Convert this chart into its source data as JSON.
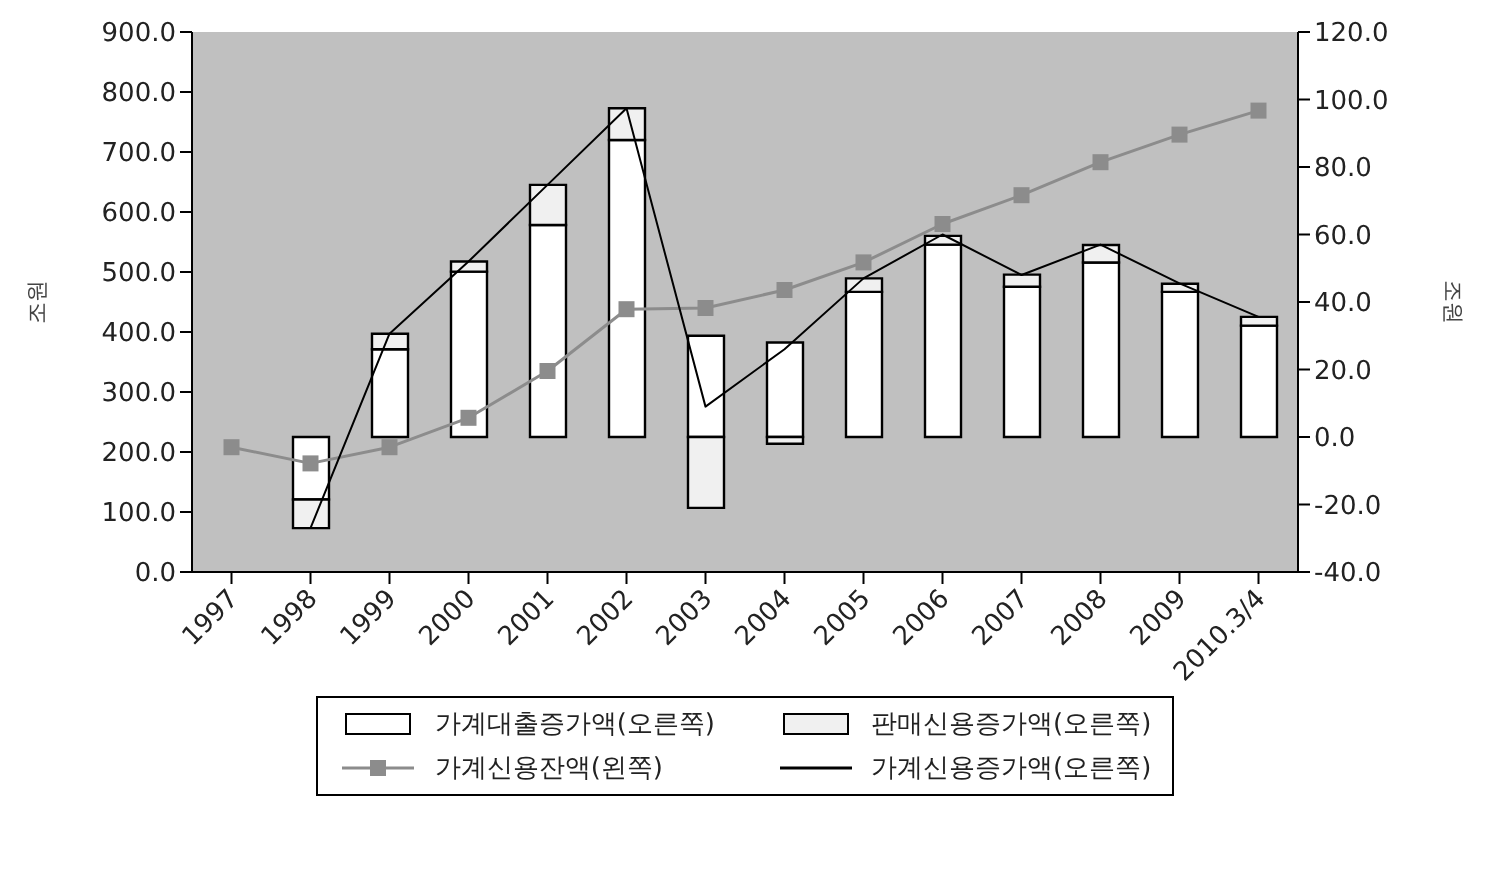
{
  "chart_data": {
    "type": "bar",
    "stacked": true,
    "ylabel": "조원",
    "y2label": "조원",
    "categories": [
      "1997",
      "1998",
      "1999",
      "2000",
      "2001",
      "2002",
      "2003",
      "2004",
      "2005",
      "2006",
      "2007",
      "2008",
      "2009",
      "2010.3/4"
    ],
    "series": [
      {
        "name": "가계대출증가액(오른쪽)",
        "axis": "y2",
        "color": "#ffffff",
        "values": [
          null,
          -18.5,
          26,
          49,
          62.8,
          88,
          30,
          28,
          43,
          57,
          44.5,
          51.7,
          43,
          33
        ]
      },
      {
        "name": "판매신용증가액(오른쪽)",
        "axis": "y2",
        "color": "#f0f0f0",
        "values": [
          null,
          -8.5,
          4.6,
          3,
          11.9,
          9.4,
          -21,
          -2,
          4,
          2.6,
          3.6,
          5.2,
          2.4,
          2.6
        ]
      },
      {
        "name": "가계신용잔액(왼쪽)",
        "type": "line",
        "axis": "y",
        "color": "#8c8c8c",
        "marker": "square",
        "values": [
          208,
          181,
          208,
          257,
          335,
          438,
          440,
          470,
          516,
          580,
          628,
          683,
          729,
          769
        ]
      },
      {
        "name": "가계신용증가액(오른쪽)",
        "type": "line",
        "axis": "y2",
        "color": "#000000",
        "marker": "none",
        "values": [
          null,
          -27,
          30.6,
          52,
          74.7,
          97.4,
          9,
          26,
          47,
          60,
          48,
          57,
          45.5,
          35.6
        ]
      }
    ],
    "ylim": [
      0,
      900
    ],
    "yticks": [
      {
        "value": 0,
        "label": "0.0"
      },
      {
        "value": 100,
        "label": "100.0"
      },
      {
        "value": 200,
        "label": "200.0"
      },
      {
        "value": 300,
        "label": "300.0"
      },
      {
        "value": 400,
        "label": "400.0"
      },
      {
        "value": 500,
        "label": "500.0"
      },
      {
        "value": 600,
        "label": "600.0"
      },
      {
        "value": 700,
        "label": "700.0"
      },
      {
        "value": 800,
        "label": "800.0"
      },
      {
        "value": 900,
        "label": "900.0"
      }
    ],
    "y2lim": [
      -40,
      120
    ],
    "y2ticks": [
      {
        "value": -40,
        "label": "-40.0"
      },
      {
        "value": -20,
        "label": "-20.0"
      },
      {
        "value": 0,
        "label": "0.0"
      },
      {
        "value": 20,
        "label": "20.0"
      },
      {
        "value": 40,
        "label": "40.0"
      },
      {
        "value": 60,
        "label": "60.0"
      },
      {
        "value": 80,
        "label": "80.0"
      },
      {
        "value": 100,
        "label": "100.0"
      },
      {
        "value": 120,
        "label": "120.0"
      }
    ],
    "grid": false,
    "legend": "bottom"
  }
}
